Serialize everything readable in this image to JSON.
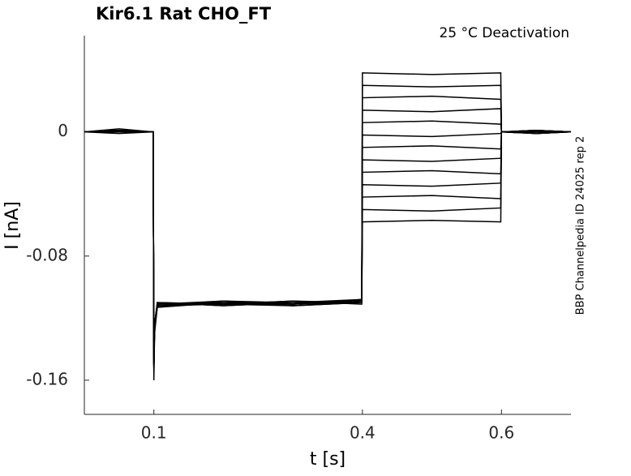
{
  "chart_data": {
    "type": "line",
    "title": "Kir6.1  Rat  CHO_FT",
    "subtitle": "25 °C  Deactivation",
    "xlabel": "t [s]",
    "ylabel": "I [nA]",
    "side_note": "BBP Channelpedia ID 24025 rep 2",
    "x": [
      0,
      0.05,
      0.099,
      0.1,
      0.101,
      0.105,
      0.2,
      0.3,
      0.399,
      0.4,
      0.5,
      0.599,
      0.6,
      0.65,
      0.7
    ],
    "xlim": [
      0,
      0.7
    ],
    "xticks": [
      0.1,
      0.4,
      0.6
    ],
    "ylim": [
      -0.182,
      0.062
    ],
    "yticks": [
      0,
      -0.08,
      -0.16
    ],
    "series": [
      {
        "color": "#000000",
        "values": [
          0,
          0.001,
          0,
          -0.16,
          -0.13,
          -0.112,
          -0.11,
          -0.111,
          -0.109,
          0.038,
          0.037,
          0.038,
          0,
          0.001,
          0
        ]
      },
      {
        "color": "#000000",
        "values": [
          0,
          0.002,
          0,
          -0.155,
          -0.128,
          -0.11,
          -0.112,
          -0.11,
          -0.108,
          0.03,
          0.029,
          0.03,
          0,
          -0.001,
          0
        ]
      },
      {
        "color": "#000000",
        "values": [
          0,
          0.001,
          0,
          -0.15,
          -0.125,
          -0.111,
          -0.109,
          -0.112,
          -0.11,
          0.022,
          0.023,
          0.021,
          0,
          0,
          0
        ]
      },
      {
        "color": "#000000",
        "values": [
          0,
          0,
          0,
          -0.15,
          -0.126,
          -0.113,
          -0.11,
          -0.11,
          -0.109,
          0.014,
          0.013,
          0.015,
          0,
          0.001,
          0
        ]
      },
      {
        "color": "#000000",
        "values": [
          0,
          0.001,
          0,
          -0.148,
          -0.124,
          -0.11,
          -0.111,
          -0.109,
          -0.111,
          0.006,
          0.007,
          0.005,
          0,
          0,
          0
        ]
      },
      {
        "color": "#000000",
        "values": [
          0,
          -0.001,
          0,
          -0.15,
          -0.127,
          -0.112,
          -0.109,
          -0.111,
          -0.108,
          -0.002,
          -0.003,
          -0.001,
          0,
          0,
          0
        ]
      },
      {
        "color": "#000000",
        "values": [
          0,
          0.001,
          0,
          -0.152,
          -0.125,
          -0.111,
          -0.11,
          -0.112,
          -0.11,
          -0.01,
          -0.009,
          -0.011,
          0,
          -0.001,
          0
        ]
      },
      {
        "color": "#000000",
        "values": [
          0,
          0,
          0,
          -0.149,
          -0.124,
          -0.11,
          -0.112,
          -0.11,
          -0.109,
          -0.018,
          -0.019,
          -0.017,
          0,
          0,
          0
        ]
      },
      {
        "color": "#000000",
        "values": [
          0,
          0.001,
          0,
          -0.15,
          -0.126,
          -0.112,
          -0.111,
          -0.109,
          -0.11,
          -0.026,
          -0.025,
          -0.027,
          0,
          0.001,
          0
        ]
      },
      {
        "color": "#000000",
        "values": [
          0,
          0,
          0,
          -0.151,
          -0.125,
          -0.111,
          -0.11,
          -0.111,
          -0.108,
          -0.034,
          -0.035,
          -0.033,
          0,
          0,
          0
        ]
      },
      {
        "color": "#000000",
        "values": [
          0,
          0.001,
          0,
          -0.15,
          -0.127,
          -0.113,
          -0.109,
          -0.11,
          -0.11,
          -0.042,
          -0.041,
          -0.043,
          0,
          -0.001,
          0
        ]
      },
      {
        "color": "#000000",
        "values": [
          0,
          0,
          0,
          -0.15,
          -0.124,
          -0.11,
          -0.111,
          -0.112,
          -0.109,
          -0.05,
          -0.051,
          -0.049,
          0,
          0,
          0
        ]
      },
      {
        "color": "#000000",
        "values": [
          0,
          0.001,
          0,
          -0.152,
          -0.126,
          -0.112,
          -0.11,
          -0.11,
          -0.11,
          -0.058,
          -0.057,
          -0.058,
          0,
          0.001,
          0
        ]
      }
    ]
  }
}
